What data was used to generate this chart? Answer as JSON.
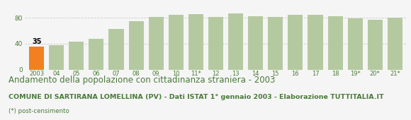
{
  "categories": [
    "2003",
    "04",
    "05",
    "06",
    "07",
    "08",
    "09",
    "10",
    "11*",
    "12",
    "13",
    "14",
    "15",
    "16",
    "17",
    "18",
    "19*",
    "20*",
    "21*"
  ],
  "values": [
    35,
    38,
    43,
    47,
    63,
    75,
    81,
    85,
    86,
    81,
    87,
    82,
    81,
    85,
    85,
    82,
    79,
    77,
    80
  ],
  "bar_color_default": "#b5c9a0",
  "bar_color_highlight": "#f28020",
  "highlight_index": 0,
  "highlight_label": "35",
  "ylim": [
    0,
    100
  ],
  "yticks": [
    0,
    40,
    80
  ],
  "grid_color": "#cccccc",
  "background_color": "#f5f5f5",
  "text_color": "#4a7a3a",
  "title": "Andamento della popolazione con cittadinanza straniera - 2003",
  "subtitle": "COMUNE DI SARTIRANA LOMELLINA (PV) - Dati ISTAT 1° gennaio 2003 - Elaborazione TUTTITALIA.IT",
  "footnote": "(*) post-censimento",
  "title_fontsize": 8.5,
  "subtitle_fontsize": 6.8,
  "footnote_fontsize": 6.2,
  "tick_color": "#4a7a3a"
}
